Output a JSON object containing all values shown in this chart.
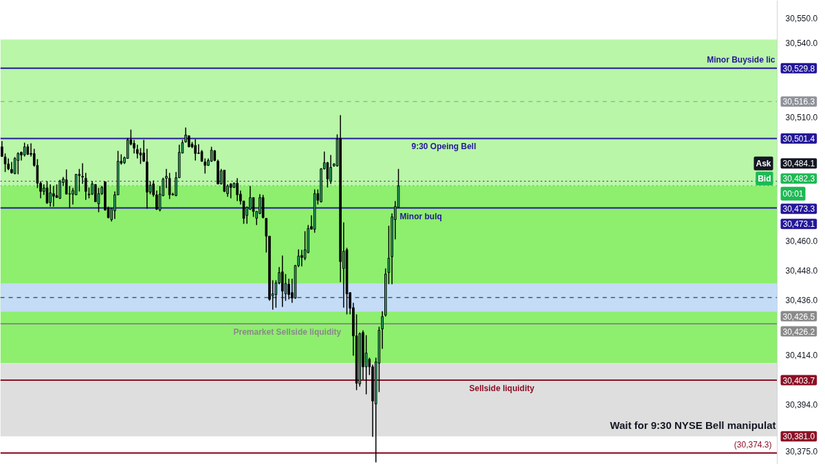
{
  "chart_data": {
    "type": "candlestick",
    "categories": [
      null,
      null,
      null,
      null,
      null,
      null,
      null,
      null,
      null,
      null,
      null,
      null,
      null,
      null,
      null,
      null,
      null,
      null,
      null,
      null,
      null,
      null,
      null,
      null,
      null,
      null,
      null,
      null,
      null,
      null,
      null,
      null,
      null,
      null,
      null,
      null,
      null,
      null,
      null,
      null,
      null,
      null,
      null,
      null,
      null,
      null,
      null,
      null,
      null,
      null,
      null,
      null,
      null,
      null,
      null,
      null,
      null,
      null,
      null,
      null,
      null,
      null,
      null,
      null,
      null,
      null,
      null,
      null,
      null,
      null,
      null,
      null,
      null,
      null,
      null,
      null,
      null,
      null,
      null,
      null,
      null,
      null,
      null,
      null,
      null,
      null,
      null,
      null,
      null,
      null,
      null,
      null,
      null,
      null,
      null,
      null,
      null,
      null,
      null,
      null,
      null,
      null,
      null,
      null,
      null,
      null,
      null,
      null,
      null,
      null,
      null,
      null,
      null,
      null,
      null,
      null,
      null,
      null,
      null,
      null,
      null,
      null,
      null,
      null,
      null,
      null,
      null,
      null,
      null,
      null,
      null,
      null,
      null,
      null,
      null,
      null,
      null,
      null,
      null,
      null,
      null,
      null,
      null,
      null,
      null,
      null,
      null,
      null,
      null,
      null,
      null,
      null,
      null,
      null,
      null,
      null,
      null,
      null,
      null,
      null,
      null,
      null,
      null,
      null,
      null,
      null,
      null,
      null,
      null,
      null,
      null,
      null,
      null,
      null,
      null,
      null,
      null,
      null,
      null,
      null,
      null,
      null,
      null,
      null,
      null,
      null,
      null,
      null,
      null,
      null,
      null,
      null,
      null,
      null,
      null,
      null,
      null,
      null,
      null,
      null,
      null,
      null,
      null,
      null,
      null,
      null,
      null,
      null,
      null,
      null,
      null,
      null,
      null,
      null,
      null,
      null,
      null,
      null,
      null,
      null,
      null,
      null,
      null,
      null,
      null,
      null,
      null,
      null,
      null,
      null,
      null,
      null,
      null,
      null,
      null,
      null,
      null,
      null,
      null,
      null,
      null
    ],
    "ohlc": [
      [
        30498.0,
        30500.3,
        30494.1,
        30494.1
      ],
      [
        30493.9,
        30495.3,
        30487.8,
        30491.1
      ],
      [
        30491.1,
        30493.3,
        30488.6,
        30489.1
      ],
      [
        30488.9,
        30491.9,
        30487.2,
        30487.5
      ],
      [
        30487.2,
        30493.9,
        30486.9,
        30493.3
      ],
      [
        30492.5,
        30495.8,
        30486.9,
        30495.3
      ],
      [
        30495.8,
        30496.1,
        30492.5,
        30494.7
      ],
      [
        30494.7,
        30499.7,
        30494.1,
        30498.0
      ],
      [
        30498.0,
        30499.1,
        30494.7,
        30495.0
      ],
      [
        30495.3,
        30499.4,
        30494.1,
        30495.0
      ],
      [
        30495.3,
        30497.2,
        30490.0,
        30490.5
      ],
      [
        30490.5,
        30493.0,
        30481.4,
        30483.3
      ],
      [
        30483.3,
        30484.1,
        30477.2,
        30480.0
      ],
      [
        30480.0,
        30482.8,
        30478.6,
        30481.4
      ],
      [
        30481.4,
        30484.1,
        30475.0,
        30475.3
      ],
      [
        30475.5,
        30482.8,
        30473.9,
        30479.4
      ],
      [
        30479.1,
        30482.2,
        30473.9,
        30478.0
      ],
      [
        30478.3,
        30482.8,
        30477.5,
        30477.5
      ],
      [
        30477.2,
        30484.7,
        30476.9,
        30484.1
      ],
      [
        30483.6,
        30485.8,
        30482.2,
        30485.0
      ],
      [
        30484.7,
        30488.9,
        30478.9,
        30478.9
      ],
      [
        30479.1,
        30482.2,
        30473.3,
        30478.9
      ],
      [
        30478.9,
        30481.4,
        30474.7,
        30480.3
      ],
      [
        30478.6,
        30486.9,
        30478.6,
        30486.9
      ],
      [
        30486.9,
        30489.1,
        30480.0,
        30486.4
      ],
      [
        30486.1,
        30491.4,
        30483.0,
        30485.8
      ],
      [
        30485.3,
        30487.5,
        30476.6,
        30480.0
      ],
      [
        30478.9,
        30481.6,
        30477.2,
        30478.6
      ],
      [
        30478.9,
        30484.1,
        30478.6,
        30483.0
      ],
      [
        30482.8,
        30482.8,
        30475.8,
        30475.8
      ],
      [
        30475.0,
        30481.4,
        30471.6,
        30479.1
      ],
      [
        30479.1,
        30482.2,
        30478.6,
        30481.6
      ],
      [
        30483.9,
        30483.9,
        30472.2,
        30472.5
      ],
      [
        30473.3,
        30473.9,
        30469.1,
        30469.4
      ],
      [
        30468.6,
        30473.3,
        30467.8,
        30473.0
      ],
      [
        30472.2,
        30480.0,
        30468.9,
        30478.6
      ],
      [
        30478.6,
        30496.4,
        30478.6,
        30492.2
      ],
      [
        30492.2,
        30495.0,
        30490.8,
        30491.4
      ],
      [
        30491.6,
        30494.1,
        30491.1,
        30493.6
      ],
      [
        30493.3,
        30501.6,
        30493.3,
        30500.8
      ],
      [
        30500.8,
        30505.0,
        30498.6,
        30499.1
      ],
      [
        30499.4,
        30500.8,
        30495.3,
        30497.5
      ],
      [
        30496.9,
        30498.9,
        30493.3,
        30495.3
      ],
      [
        30495.5,
        30497.5,
        30491.1,
        30494.7
      ],
      [
        30495.5,
        30500.8,
        30491.9,
        30492.2
      ],
      [
        30491.9,
        30497.2,
        30473.0,
        30479.7
      ],
      [
        30479.7,
        30484.1,
        30478.9,
        30482.5
      ],
      [
        30483.0,
        30484.4,
        30477.8,
        30478.6
      ],
      [
        30478.6,
        30480.3,
        30472.5,
        30472.8
      ],
      [
        30472.5,
        30482.2,
        30471.9,
        30478.9
      ],
      [
        30478.3,
        30485.5,
        30478.0,
        30485.0
      ],
      [
        30485.3,
        30489.1,
        30481.4,
        30486.1
      ],
      [
        30485.3,
        30487.5,
        30476.9,
        30478.6
      ],
      [
        30478.6,
        30479.4,
        30478.3,
        30478.9
      ],
      [
        30478.3,
        30487.8,
        30478.0,
        30485.5
      ],
      [
        30485.5,
        30498.9,
        30485.5,
        30495.8
      ],
      [
        30495.5,
        30500.8,
        30495.3,
        30499.7
      ],
      [
        30500.0,
        30505.8,
        30499.7,
        30502.8
      ],
      [
        30502.5,
        30502.5,
        30497.8,
        30498.0
      ],
      [
        30499.1,
        30500.0,
        30497.5,
        30498.0
      ],
      [
        30498.6,
        30501.1,
        30492.5,
        30495.3
      ],
      [
        30495.5,
        30499.1,
        30495.3,
        30495.3
      ],
      [
        30496.1,
        30496.7,
        30491.9,
        30492.2
      ],
      [
        30491.9,
        30493.3,
        30487.2,
        30490.5
      ],
      [
        30490.5,
        30493.3,
        30490.3,
        30492.5
      ],
      [
        30492.2,
        30498.0,
        30491.9,
        30496.7
      ],
      [
        30496.4,
        30496.7,
        30492.2,
        30492.5
      ],
      [
        30492.2,
        30492.8,
        30482.8,
        30483.0
      ],
      [
        30483.0,
        30489.1,
        30482.8,
        30488.3
      ],
      [
        30488.6,
        30488.6,
        30479.7,
        30480.0
      ],
      [
        30479.1,
        30482.8,
        30477.8,
        30482.2
      ],
      [
        30483.0,
        30483.3,
        30477.2,
        30481.6
      ],
      [
        30481.6,
        30483.6,
        30481.4,
        30483.3
      ],
      [
        30483.3,
        30485.3,
        30476.1,
        30478.6
      ],
      [
        30478.9,
        30480.3,
        30474.7,
        30476.1
      ],
      [
        30476.1,
        30476.1,
        30466.9,
        30469.1
      ],
      [
        30470.3,
        30473.9,
        30466.9,
        30473.6
      ],
      [
        30472.8,
        30482.2,
        30472.5,
        30477.5
      ],
      [
        30477.5,
        30477.5,
        30469.7,
        30471.9
      ],
      [
        30469.1,
        30471.9,
        30466.4,
        30471.9
      ],
      [
        30471.1,
        30478.9,
        30470.8,
        30477.5
      ],
      [
        30477.5,
        30478.6,
        30469.1,
        30469.4
      ],
      [
        30469.1,
        30469.1,
        30455.3,
        30461.9
      ],
      [
        30461.9,
        30461.9,
        30435.8,
        30436.4
      ],
      [
        30437.8,
        30444.1,
        30432.2,
        30438.6
      ],
      [
        30438.3,
        30444.1,
        30433.0,
        30443.0
      ],
      [
        30443.0,
        30449.4,
        30442.5,
        30447.2
      ],
      [
        30447.5,
        30454.1,
        30433.3,
        30439.7
      ],
      [
        30438.6,
        30446.6,
        30435.8,
        30442.8
      ],
      [
        30442.5,
        30444.7,
        30436.4,
        30438.3
      ],
      [
        30439.1,
        30444.7,
        30435.0,
        30436.9
      ],
      [
        30436.9,
        30450.3,
        30436.6,
        30450.0
      ],
      [
        30450.0,
        30456.6,
        30449.4,
        30453.9
      ],
      [
        30454.1,
        30456.4,
        30449.7,
        30453.3
      ],
      [
        30453.0,
        30463.9,
        30452.2,
        30456.4
      ],
      [
        30455.3,
        30466.4,
        30455.0,
        30465.0
      ],
      [
        30465.8,
        30470.3,
        30464.7,
        30464.7
      ],
      [
        30464.7,
        30480.8,
        30463.3,
        30479.1
      ],
      [
        30479.1,
        30480.8,
        30474.7,
        30476.4
      ],
      [
        30475.8,
        30489.4,
        30475.5,
        30489.1
      ],
      [
        30489.1,
        30496.1,
        30488.9,
        30491.6
      ],
      [
        30491.6,
        30491.9,
        30481.6,
        30485.0
      ],
      [
        30484.1,
        30494.7,
        30483.0,
        30489.7
      ],
      [
        30490.3,
        30491.4,
        30490.0,
        30491.1
      ],
      [
        30490.3,
        30503.0,
        30490.0,
        30501.1
      ],
      [
        30501.4,
        30510.8,
        30443.3,
        30451.6
      ],
      [
        30448.9,
        30467.5,
        30433.0,
        30455.8
      ],
      [
        30456.4,
        30457.2,
        30430.3,
        30438.6
      ],
      [
        30439.1,
        30439.1,
        30430.3,
        30432.8
      ],
      [
        30433.0,
        30435.0,
        30413.6,
        30421.6
      ],
      [
        30421.6,
        30430.3,
        30399.7,
        30402.5
      ],
      [
        30402.2,
        30423.0,
        30401.1,
        30422.5
      ],
      [
        30423.0,
        30423.9,
        30403.9,
        30409.1
      ],
      [
        30409.1,
        30421.9,
        30398.0,
        30414.7
      ],
      [
        30412.2,
        30412.8,
        30405.8,
        30409.1
      ],
      [
        30409.1,
        30410.0,
        30380.8,
        30395.3
      ],
      [
        30394.1,
        30412.8,
        30370.5,
        30411.1
      ],
      [
        30410.6,
        30425.3,
        30398.9,
        30423.9
      ],
      [
        30424.4,
        30431.6,
        30416.4,
        30429.4
      ],
      [
        30430.0,
        30448.9,
        30429.4,
        30446.6
      ],
      [
        30447.2,
        30466.1,
        30442.5,
        30453.0
      ],
      [
        30453.6,
        30471.1,
        30442.5,
        30469.7
      ],
      [
        30468.6,
        30476.1,
        30460.6,
        30473.9
      ],
      [
        30473.6,
        30489.1,
        30473.3,
        30482.3
      ],
      null,
      null,
      null,
      null,
      null,
      null,
      null,
      null,
      null,
      null,
      null,
      null,
      null,
      null,
      null,
      null,
      null,
      null,
      null,
      null,
      null,
      null,
      null,
      null,
      null,
      null,
      null,
      null,
      null,
      null,
      null,
      null,
      null,
      null,
      null,
      null,
      null,
      null,
      null,
      null,
      null,
      null,
      null,
      null,
      null,
      null,
      null,
      null,
      null,
      null,
      null,
      null,
      null,
      null,
      null,
      null,
      null,
      null,
      null,
      null,
      null,
      null,
      null,
      null,
      null,
      null,
      null,
      null,
      null,
      null,
      null,
      null,
      null,
      null,
      null,
      null,
      null,
      null,
      null,
      null,
      null,
      null,
      null,
      null,
      null,
      null,
      null,
      null,
      null,
      null,
      null,
      null,
      null,
      null,
      null,
      null,
      null,
      null,
      null,
      null,
      null,
      null,
      null,
      null,
      null,
      null,
      null,
      null,
      null,
      null,
      null,
      null,
      null,
      null,
      null,
      null,
      null
    ],
    "colors": [
      "#000000",
      "#000000",
      "#000000",
      "#000000",
      "#2fb36a",
      "#2fb36a",
      "#000000",
      "#2fb36a",
      "#000000",
      "#000000",
      "#000000",
      "#000000",
      "#000000",
      "#2fb36a",
      "#000000",
      "#2fb36a",
      "#000000",
      "#000000",
      "#2fb36a",
      "#2fb36a",
      "#000000",
      "#000000",
      "#2fb36a",
      "#2fb36a",
      "#000000",
      "#000000",
      "#000000",
      "#000000",
      "#2fb36a",
      "#000000",
      "#2fb36a",
      "#2fb36a",
      "#000000",
      "#000000",
      "#2fb36a",
      "#2fb36a",
      "#2fb36a",
      "#000000",
      "#2fb36a",
      "#2fb36a",
      "#000000",
      "#000000",
      "#000000",
      "#000000",
      "#000000",
      "#000000",
      "#2fb36a",
      "#000000",
      "#000000",
      "#2fb36a",
      "#2fb36a",
      "#2fb36a",
      "#000000",
      "#2fb36a",
      "#2fb36a",
      "#2fb36a",
      "#2fb36a",
      "#2fb36a",
      "#000000",
      "#000000",
      "#000000",
      "#000000",
      "#000000",
      "#000000",
      "#2fb36a",
      "#2fb36a",
      "#000000",
      "#000000",
      "#2fb36a",
      "#000000",
      "#2fb36a",
      "#000000",
      "#2fb36a",
      "#000000",
      "#000000",
      "#000000",
      "#2fb36a",
      "#2fb36a",
      "#000000",
      "#2fb36a",
      "#2fb36a",
      "#000000",
      "#000000",
      "#000000",
      "#2fb36a",
      "#2fb36a",
      "#2fb36a",
      "#000000",
      "#2fb36a",
      "#000000",
      "#000000",
      "#2fb36a",
      "#2fb36a",
      "#000000",
      "#2fb36a",
      "#2fb36a",
      "#000000",
      "#2fb36a",
      "#000000",
      "#2fb36a",
      "#2fb36a",
      "#000000",
      "#2fb36a",
      "#2fb36a",
      "#2fb36a",
      "#000000",
      "#2fb36a",
      "#000000",
      "#000000",
      "#000000",
      "#000000",
      "#2fb36a",
      "#000000",
      "#2fb36a",
      "#000000",
      "#000000",
      "#2fb36a",
      "#2fb36a",
      "#2fb36a",
      "#2fb36a",
      "#2fb36a",
      "#2fb36a",
      "#2fb36a",
      "#2fb36a",
      null,
      null,
      null,
      null,
      null,
      null,
      null,
      null,
      null,
      null,
      null,
      null,
      null,
      null,
      null,
      null,
      null,
      null,
      null,
      null,
      null,
      null,
      null,
      null,
      null,
      null,
      null,
      null,
      null,
      null,
      null,
      null,
      null,
      null,
      null,
      null,
      null,
      null,
      null,
      null,
      null,
      null,
      null,
      null,
      null,
      null,
      null,
      null,
      null,
      null,
      null,
      null,
      null,
      null,
      null,
      null,
      null,
      null,
      null,
      null,
      null,
      null,
      null,
      null,
      null,
      null,
      null,
      null,
      null,
      null,
      null,
      null,
      null,
      null,
      null,
      null,
      null,
      null,
      null,
      null,
      null,
      null,
      null,
      null,
      null,
      null,
      null,
      null,
      null,
      null,
      null,
      null,
      null,
      null,
      null,
      null,
      null,
      null,
      null,
      null,
      null,
      null,
      null,
      null,
      null,
      null,
      null,
      null,
      null,
      null,
      null,
      null,
      null,
      null,
      null,
      null,
      null
    ],
    "ylim": [
      30369.7,
      30557.2
    ],
    "yticks": [
      {
        "value": 30550,
        "label": "30,550.0"
      },
      {
        "value": 30540,
        "label": "30,540.0"
      },
      {
        "value": 30510,
        "label": "30,510.0"
      },
      {
        "value": 30460,
        "label": "30,460.0"
      },
      {
        "value": 30448,
        "label": "30,448.0"
      },
      {
        "value": 30436,
        "label": "30,436.0"
      },
      {
        "value": 30414,
        "label": "30,414.0"
      },
      {
        "value": 30394,
        "label": "30,394.0"
      },
      {
        "value": 30375,
        "label": "30,375.0"
      }
    ],
    "tick_labels": "y",
    "bands": [
      {
        "axis": "y",
        "from": 30482.3,
        "to": 30541.4,
        "color": "#b9f6a8"
      },
      {
        "axis": "y",
        "from": 30410.6,
        "to": 30482.3,
        "color": "#8eee6e"
      },
      {
        "axis": "y",
        "from": 30381.0,
        "to": 30410.6,
        "color": "#dedede"
      },
      {
        "axis": "y",
        "from": 30431.4,
        "to": 30442.8,
        "color": "#c4dcf6"
      }
    ],
    "ref_lines": [
      {
        "axis": "y",
        "value": 30529.8,
        "label": "30,529.8",
        "color": "#24179a"
      },
      {
        "axis": "y",
        "value": 30516.3,
        "label": "30,516.3",
        "color": "#8f929b",
        "line_style": "dashed"
      },
      {
        "axis": "y",
        "value": 30501.4,
        "label": "30,501.4",
        "color": "#24179a"
      },
      {
        "axis": "y",
        "value": 30484.1,
        "label": "30,484.1",
        "color": "#131722",
        "line_style": "dotted"
      },
      {
        "axis": "y",
        "value": 30482.3,
        "label": "30,482.3",
        "color": "#1db954",
        "line_style": "dotted"
      },
      {
        "axis": "y",
        "value": 30473.3,
        "label": "30,473.3",
        "color": "#24179a"
      },
      {
        "axis": "y",
        "value": 30437.1,
        "color": "#131722",
        "line_style": "dashed"
      },
      {
        "axis": "y",
        "value": 30426.5,
        "label": "30,426.5",
        "color": "#8a8a8a"
      },
      {
        "axis": "y",
        "value": 30403.7,
        "label": "30,403.7",
        "color": "#8c1025"
      },
      {
        "axis": "y",
        "value": 30374.3,
        "label": "(30,374.3)",
        "color": "#8c1025"
      }
    ],
    "annotations": [
      "Wait for 9:30 NYSE Bell manipulat",
      "Minor Buyside lic",
      "9:30 Opeing Bell",
      "Ask",
      "Bid",
      "00:01",
      "Minor bulq",
      "30,473.1",
      "Premarket Sellside liquidity",
      "30,426.2",
      "Sellside liquidity",
      "30,381.0"
    ]
  }
}
